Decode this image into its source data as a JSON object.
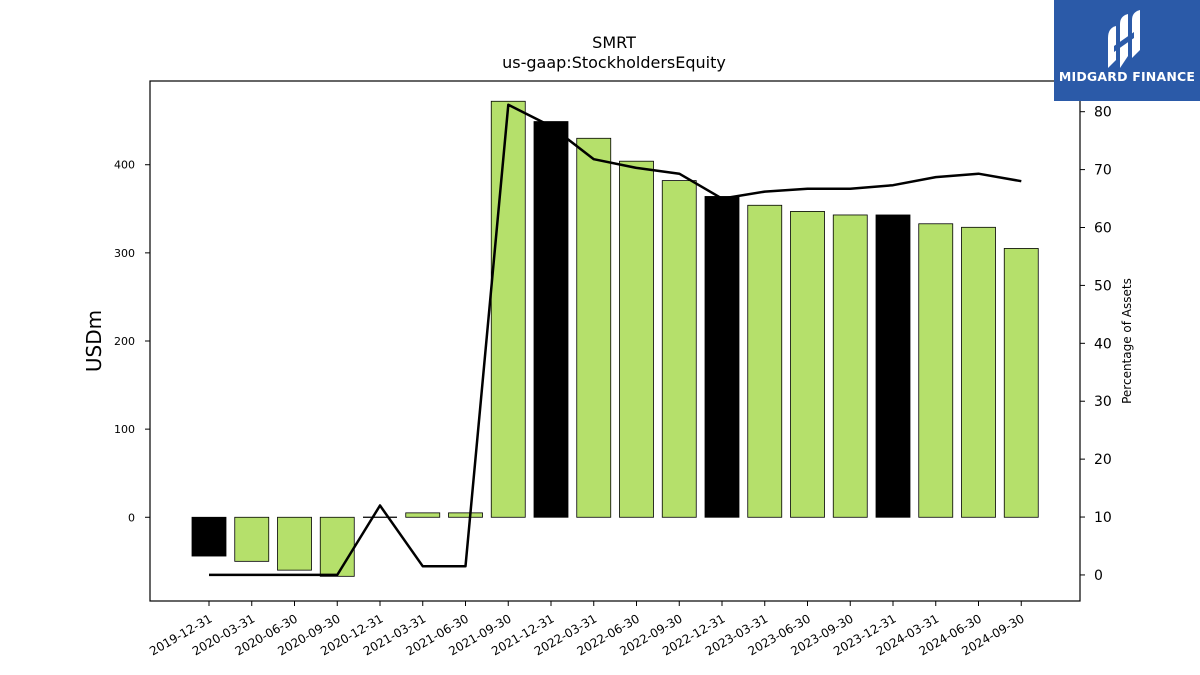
{
  "logo": {
    "text": "MIDGARD FINANCE",
    "icon": "midgard-logo-icon",
    "background": "#2b5aa8"
  },
  "chart_data": {
    "type": "bar",
    "title": "SMRT",
    "subtitle": "us-gaap:StockholdersEquity",
    "ylabel": "USDm",
    "y2label": "Percentage of Assets",
    "ylim": [
      -95,
      495
    ],
    "y2lim": [
      -4.5,
      85.3
    ],
    "yticks": [
      0,
      100,
      200,
      300,
      400
    ],
    "y2ticks": [
      0,
      10,
      20,
      30,
      40,
      50,
      60,
      70,
      80
    ],
    "grid": false,
    "colors": {
      "bar": "#b5e06b",
      "bar_highlight": "#000000",
      "line": "#000000"
    },
    "categories": [
      "2019-12-31",
      "2020-03-31",
      "2020-06-30",
      "2020-09-30",
      "2020-12-31",
      "2021-03-31",
      "2021-06-30",
      "2021-09-30",
      "2021-12-31",
      "2022-03-31",
      "2022-06-30",
      "2022-09-30",
      "2022-12-31",
      "2023-03-31",
      "2023-06-30",
      "2023-09-30",
      "2023-12-31",
      "2024-03-31",
      "2024-06-30",
      "2024-09-30"
    ],
    "values": [
      -44,
      -50,
      -60,
      -67,
      0,
      5,
      5,
      472,
      449,
      430,
      404,
      382,
      364,
      354,
      347,
      343,
      343,
      333,
      329,
      305
    ],
    "highlight": [
      true,
      false,
      false,
      false,
      true,
      false,
      false,
      false,
      true,
      false,
      false,
      false,
      true,
      false,
      false,
      false,
      true,
      false,
      false,
      false
    ],
    "series": [
      {
        "name": "",
        "axis": "right",
        "type": "line",
        "values": [
          0,
          0,
          0,
          0,
          12,
          1.5,
          1.5,
          81.2,
          77.5,
          71.8,
          70.3,
          69.3,
          65.0,
          66.2,
          66.7,
          66.7,
          67.3,
          68.7,
          69.3,
          68.0
        ]
      }
    ]
  }
}
